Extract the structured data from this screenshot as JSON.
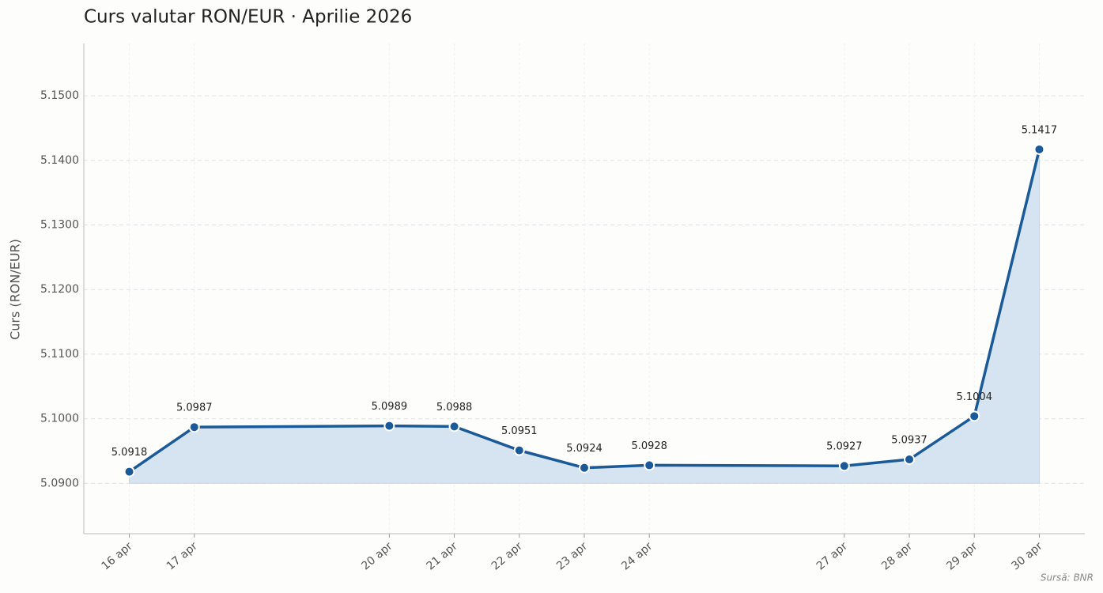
{
  "chart_data": {
    "type": "line",
    "title": "Curs valutar RON/EUR · Aprilie 2026",
    "y_label": "Curs (RON/EUR)",
    "source": "Sursă: BNR",
    "x": [
      16,
      17,
      20,
      21,
      22,
      23,
      24,
      27,
      28,
      29,
      30
    ],
    "xticks": [
      {
        "value": 16,
        "label": "16 apr"
      },
      {
        "value": 17,
        "label": "17 apr"
      },
      {
        "value": 20,
        "label": "20 apr"
      },
      {
        "value": 21,
        "label": "21 apr"
      },
      {
        "value": 22,
        "label": "22 apr"
      },
      {
        "value": 23,
        "label": "23 apr"
      },
      {
        "value": 24,
        "label": "24 apr"
      },
      {
        "value": 27,
        "label": "27 apr"
      },
      {
        "value": 28,
        "label": "28 apr"
      },
      {
        "value": 29,
        "label": "29 apr"
      },
      {
        "value": 30,
        "label": "30 apr"
      }
    ],
    "xlim": [
      15.3,
      30.7
    ],
    "series": [
      {
        "name": "RON/EUR",
        "color": "#1a5a99",
        "values": [
          5.0918,
          5.0987,
          5.0989,
          5.0988,
          5.0951,
          5.0924,
          5.0928,
          5.0927,
          5.0937,
          5.1004,
          5.1417
        ]
      }
    ],
    "ylim": [
      5.0822,
      5.1581
    ],
    "yticks": [
      {
        "value": 5.09,
        "label": "5.0900"
      },
      {
        "value": 5.1,
        "label": "5.1000"
      },
      {
        "value": 5.11,
        "label": "5.1100"
      },
      {
        "value": 5.12,
        "label": "5.1200"
      },
      {
        "value": 5.13,
        "label": "5.1300"
      },
      {
        "value": 5.14,
        "label": "5.1400"
      },
      {
        "value": 5.15,
        "label": "5.1500"
      }
    ],
    "grid": true
  }
}
